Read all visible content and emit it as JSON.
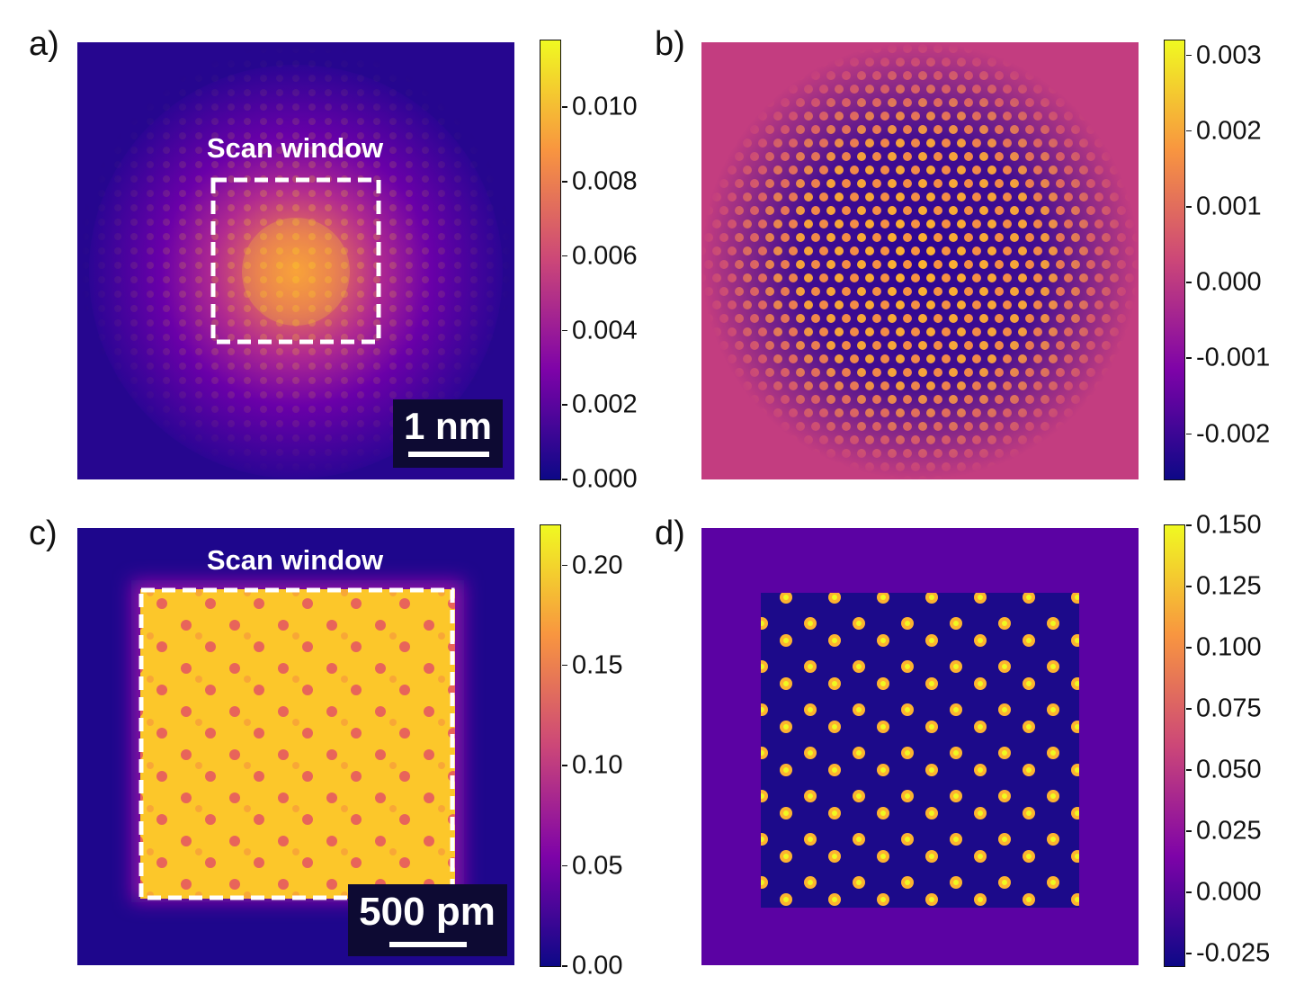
{
  "chart_data": [
    {
      "id": "a",
      "type": "heatmap",
      "panel_label": "a)",
      "annotation": "Scan window",
      "scale_bar": "1 nm",
      "colorbar": {
        "range": [
          0,
          0.0118
        ],
        "ticks": [
          0.0,
          0.002,
          0.004,
          0.006,
          0.008,
          0.01
        ],
        "tick_labels": [
          "0.000",
          "0.002",
          "0.004",
          "0.006",
          "0.008",
          "0.010"
        ]
      }
    },
    {
      "id": "b",
      "type": "heatmap",
      "panel_label": "b)",
      "colorbar": {
        "range": [
          -0.0026,
          0.0032
        ],
        "ticks": [
          -0.002,
          -0.001,
          0.0,
          0.001,
          0.002,
          0.003
        ],
        "tick_labels": [
          "-0.002",
          "-0.001",
          "0.000",
          "0.001",
          "0.002",
          "0.003"
        ]
      }
    },
    {
      "id": "c",
      "type": "heatmap",
      "panel_label": "c)",
      "annotation": "Scan window",
      "scale_bar": "500 pm",
      "colorbar": {
        "range": [
          0,
          0.22
        ],
        "ticks": [
          0.0,
          0.05,
          0.1,
          0.15,
          0.2
        ],
        "tick_labels": [
          "0.00",
          "0.05",
          "0.10",
          "0.15",
          "0.20"
        ]
      }
    },
    {
      "id": "d",
      "type": "heatmap",
      "panel_label": "d)",
      "colorbar": {
        "range": [
          -0.03,
          0.15
        ],
        "ticks": [
          -0.025,
          0.0,
          0.025,
          0.05,
          0.075,
          0.1,
          0.125,
          0.15
        ],
        "tick_labels": [
          "-0.025",
          "0.000",
          "0.025",
          "0.050",
          "0.075",
          "0.100",
          "0.125",
          "0.150"
        ]
      }
    }
  ],
  "colormap": [
    "#0d0887",
    "#7e03a8",
    "#cc4778",
    "#f89540",
    "#f0f921"
  ]
}
